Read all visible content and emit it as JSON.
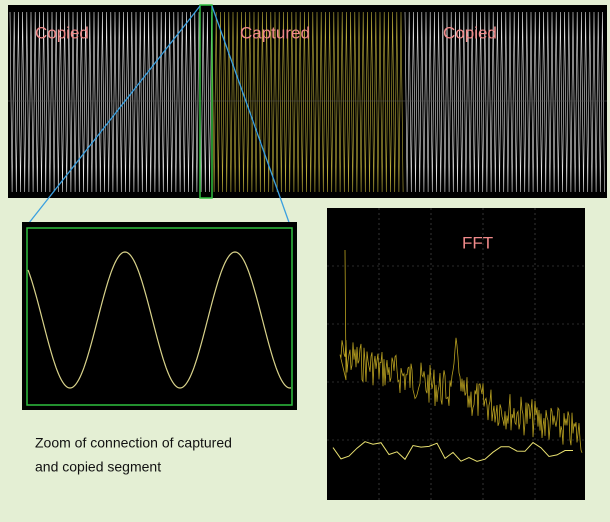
{
  "top_panel": {
    "labels": [
      "Copied",
      "Captured",
      "Copied"
    ]
  },
  "fft_panel": {
    "title": "FFT"
  },
  "caption": {
    "lines": [
      "Zoom of connection of captured",
      "and copied segment"
    ]
  }
}
